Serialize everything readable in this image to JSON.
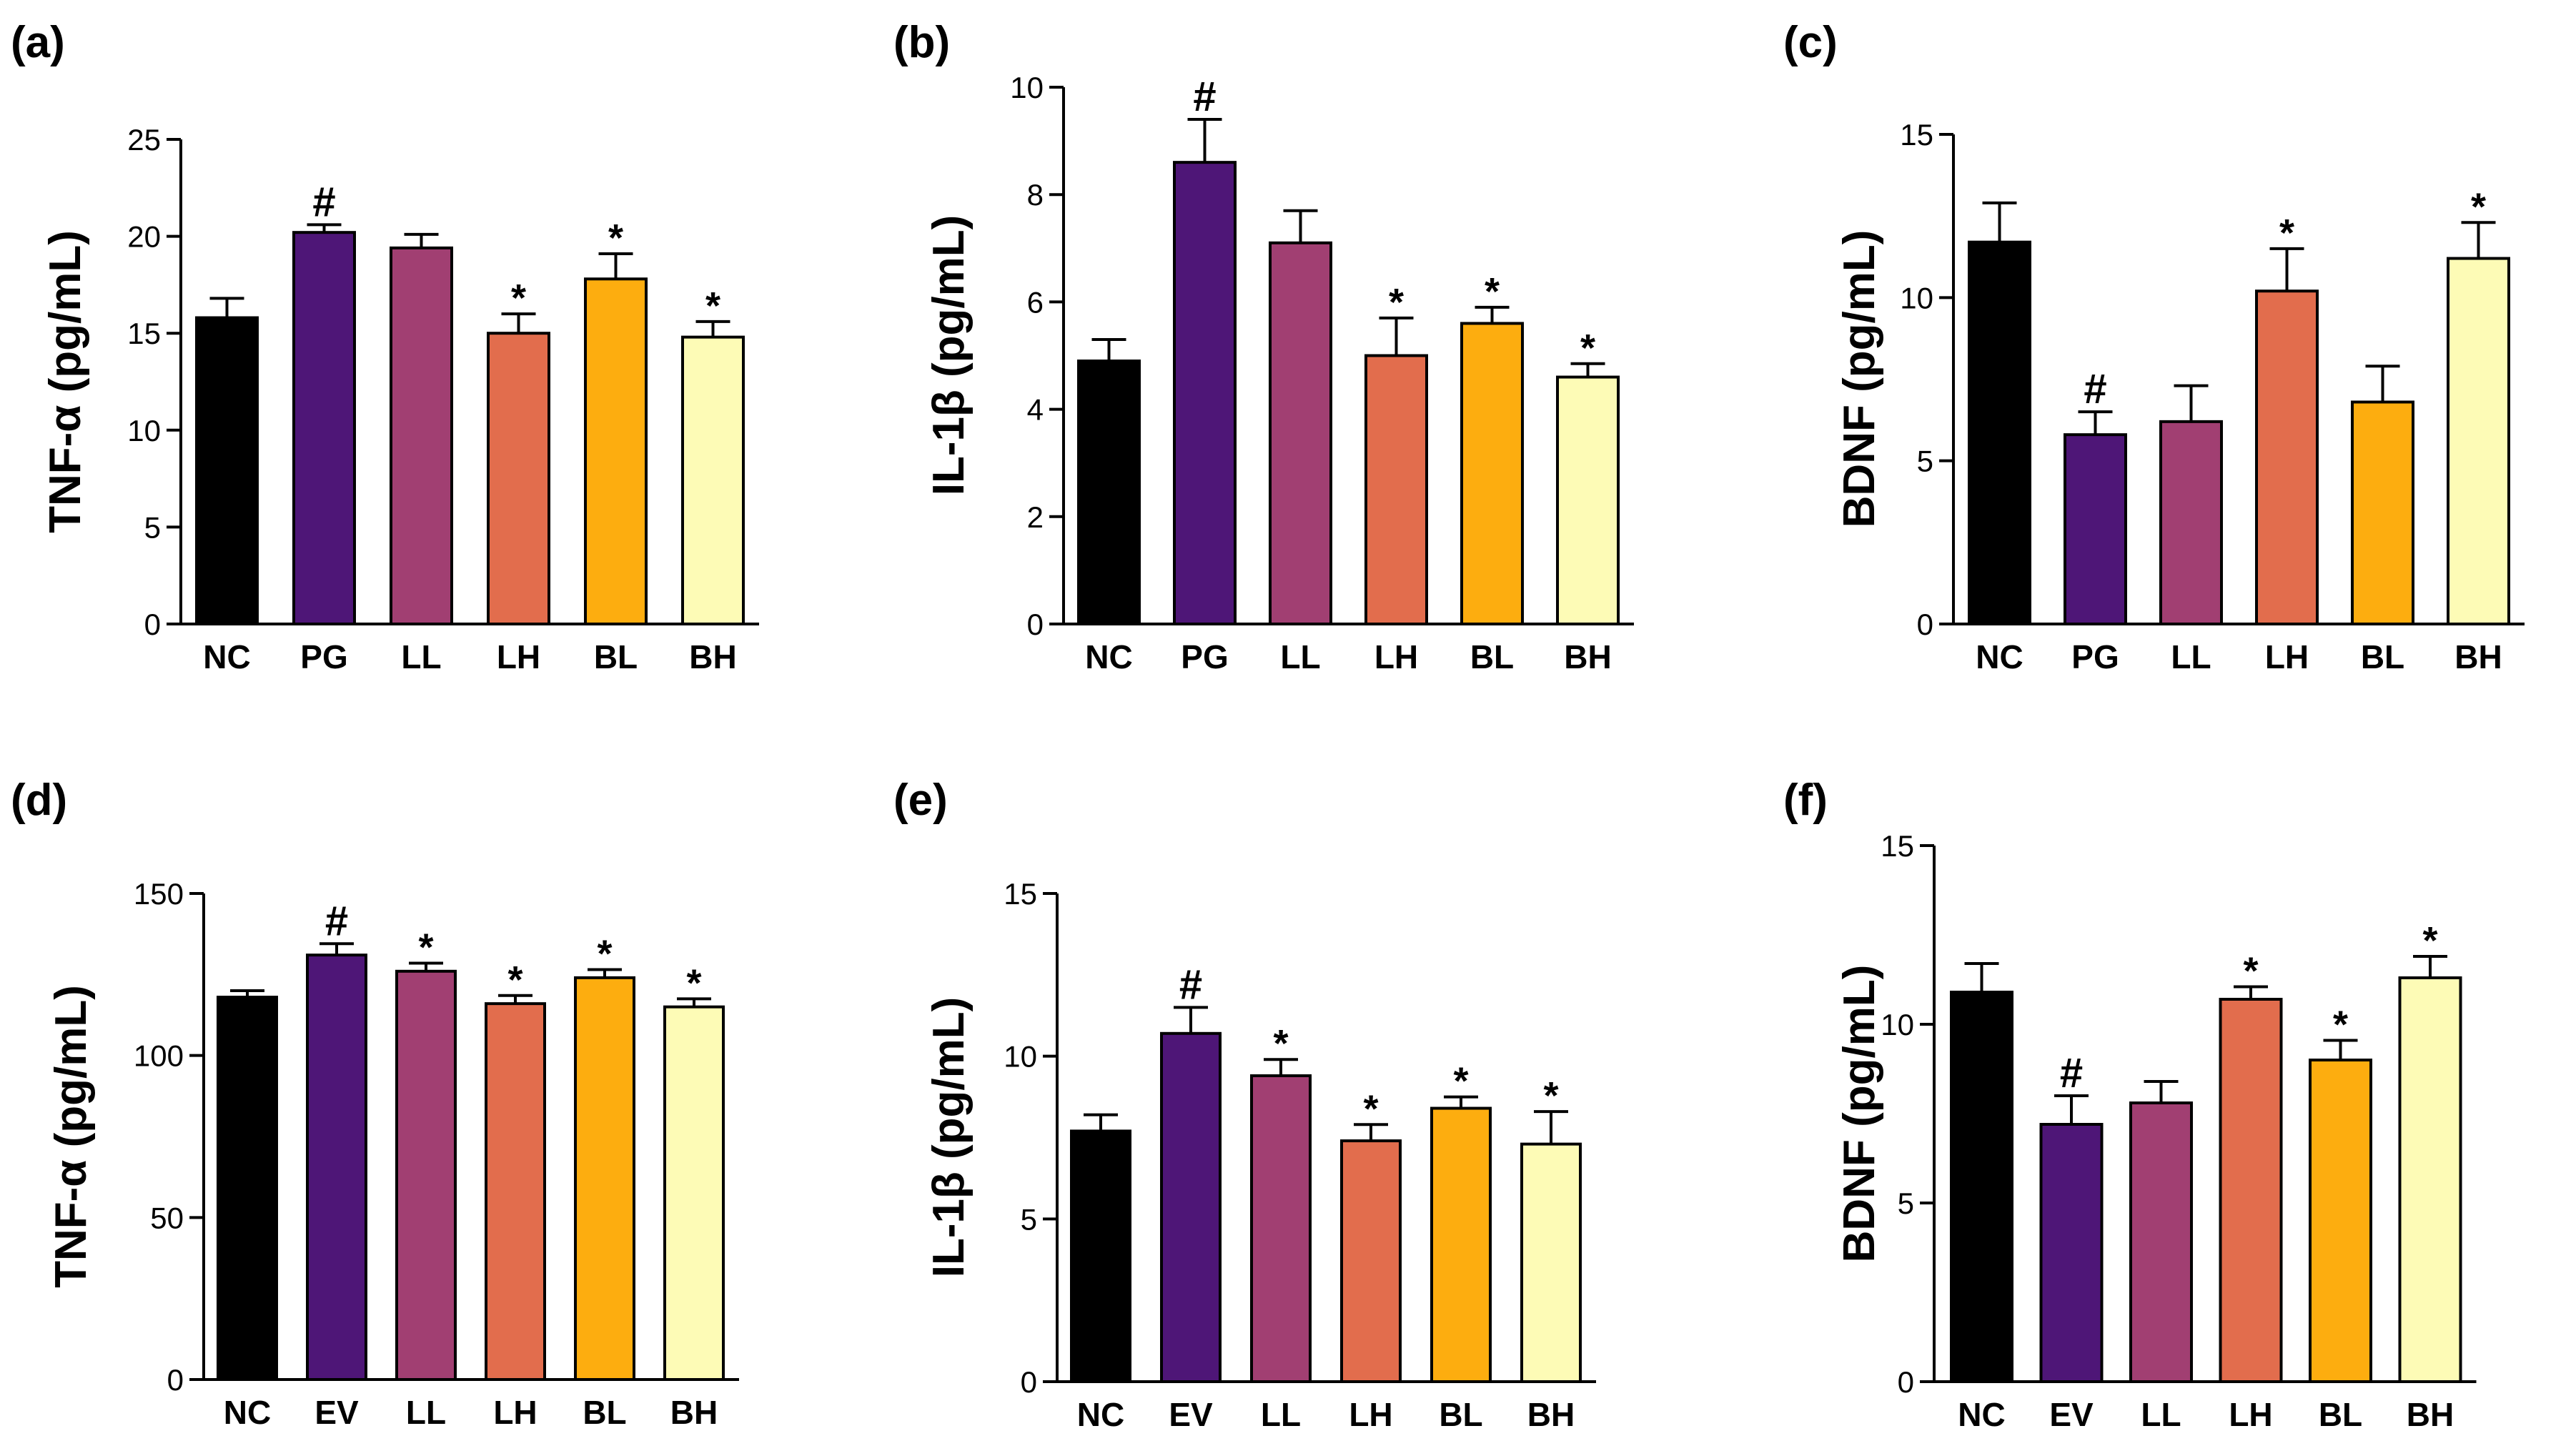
{
  "chart_data": [
    {
      "panel": "(a)",
      "type": "bar",
      "ylabel": "TNF-α (pg/mL)",
      "xlabel": "",
      "ylim": [
        0,
        25
      ],
      "yticks": [
        0,
        5,
        10,
        15,
        20,
        25
      ],
      "categories": [
        "NC",
        "PG",
        "LL",
        "LH",
        "BL",
        "BH"
      ],
      "values": [
        15.8,
        20.2,
        19.4,
        15.0,
        17.8,
        14.8
      ],
      "errors": [
        1.0,
        0.4,
        0.7,
        1.0,
        1.3,
        0.8
      ],
      "annotations": [
        "",
        "#",
        "",
        "*",
        "*",
        "*"
      ]
    },
    {
      "panel": "(b)",
      "type": "bar",
      "ylabel": "IL-1β (pg/mL)",
      "xlabel": "",
      "ylim": [
        0,
        10
      ],
      "yticks": [
        0,
        2,
        4,
        6,
        8,
        10
      ],
      "categories": [
        "NC",
        "PG",
        "LL",
        "LH",
        "BL",
        "BH"
      ],
      "values": [
        4.9,
        8.6,
        7.1,
        5.0,
        5.6,
        4.6
      ],
      "errors": [
        0.4,
        0.8,
        0.6,
        0.7,
        0.3,
        0.25
      ],
      "annotations": [
        "",
        "#",
        "",
        "*",
        "*",
        "*"
      ]
    },
    {
      "panel": "(c)",
      "type": "bar",
      "ylabel": "BDNF (pg/mL)",
      "xlabel": "",
      "ylim": [
        0,
        15
      ],
      "yticks": [
        0,
        5,
        10,
        15
      ],
      "categories": [
        "NC",
        "PG",
        "LL",
        "LH",
        "BL",
        "BH"
      ],
      "values": [
        11.7,
        5.8,
        6.2,
        10.2,
        6.8,
        11.2
      ],
      "errors": [
        1.2,
        0.7,
        1.1,
        1.3,
        1.1,
        1.1
      ],
      "annotations": [
        "",
        "#",
        "",
        "*",
        "",
        "*"
      ]
    },
    {
      "panel": "(d)",
      "type": "bar",
      "ylabel": "TNF-α (pg/mL)",
      "xlabel": "",
      "ylim": [
        0,
        150
      ],
      "yticks": [
        0,
        50,
        100,
        150
      ],
      "categories": [
        "NC",
        "EV",
        "LL",
        "LH",
        "BL",
        "BH"
      ],
      "values": [
        118,
        131,
        126,
        116,
        124,
        115
      ],
      "errors": [
        2,
        3.5,
        2.5,
        2.5,
        2.5,
        2.5
      ],
      "annotations": [
        "",
        "#",
        "*",
        "*",
        "*",
        "*"
      ]
    },
    {
      "panel": "(e)",
      "type": "bar",
      "ylabel": "IL-1β (pg/mL)",
      "xlabel": "",
      "ylim": [
        0,
        15
      ],
      "yticks": [
        0,
        5,
        10,
        15
      ],
      "categories": [
        "NC",
        "EV",
        "LL",
        "LH",
        "BL",
        "BH"
      ],
      "values": [
        7.7,
        10.7,
        9.4,
        7.4,
        8.4,
        7.3
      ],
      "errors": [
        0.5,
        0.8,
        0.5,
        0.5,
        0.35,
        1.0
      ],
      "annotations": [
        "",
        "#",
        "*",
        "*",
        "*",
        "*"
      ]
    },
    {
      "panel": "(f)",
      "type": "bar",
      "ylabel": "BDNF (pg/mL)",
      "xlabel": "",
      "ylim": [
        0,
        15
      ],
      "yticks": [
        0,
        5,
        10,
        15
      ],
      "categories": [
        "NC",
        "EV",
        "LL",
        "LH",
        "BL",
        "BH"
      ],
      "values": [
        10.9,
        7.2,
        7.8,
        10.7,
        9.0,
        11.3
      ],
      "errors": [
        0.8,
        0.8,
        0.6,
        0.35,
        0.55,
        0.6
      ],
      "annotations": [
        "",
        "#",
        "",
        "*",
        "*",
        "*"
      ]
    }
  ],
  "colors": {
    "bars": [
      "#000000",
      "#4e1677",
      "#a13f72",
      "#e26d4d",
      "#fdad0f",
      "#fdfbb6"
    ],
    "axis": "#000000"
  }
}
